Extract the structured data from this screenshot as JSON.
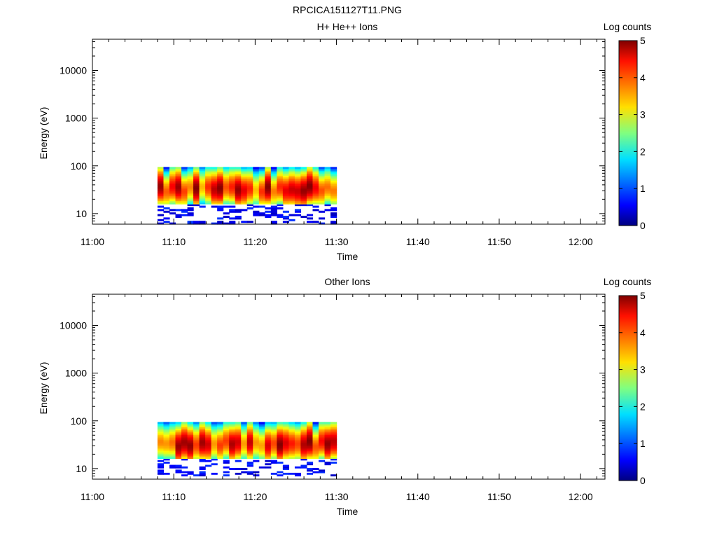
{
  "figure": {
    "title": "RPCICA151127T11.PNG"
  },
  "colorbar": {
    "label": "Log counts",
    "ticks": [
      "0",
      "1",
      "2",
      "3",
      "4",
      "5"
    ],
    "min": 0,
    "max": 5
  },
  "chart_data": [
    {
      "type": "heatmap",
      "title": "H+ He++ Ions",
      "xlabel": "Time",
      "ylabel": "Energy (eV)",
      "y_scale": "log",
      "x_ticks": [
        "11:00",
        "11:10",
        "11:20",
        "11:30",
        "11:40",
        "11:50",
        "12:00"
      ],
      "y_ticks": [
        "10",
        "100",
        "1000",
        "10000"
      ],
      "xlim": [
        "11:00",
        "12:03"
      ],
      "ylim": [
        6,
        45000
      ],
      "data_extent_time": [
        "11:08",
        "11:30"
      ],
      "data_extent_energy": [
        6,
        95
      ],
      "peak_energy_eV": 35,
      "peak_log_counts": 4.6
    },
    {
      "type": "heatmap",
      "title": "Other Ions",
      "xlabel": "Time",
      "ylabel": "Energy (eV)",
      "y_scale": "log",
      "x_ticks": [
        "11:00",
        "11:10",
        "11:20",
        "11:30",
        "11:40",
        "11:50",
        "12:00"
      ],
      "y_ticks": [
        "10",
        "100",
        "1000",
        "10000"
      ],
      "xlim": [
        "11:00",
        "12:03"
      ],
      "ylim": [
        6,
        45000
      ],
      "data_extent_time": [
        "11:08",
        "11:30"
      ],
      "data_extent_energy": [
        7,
        95
      ],
      "peak_energy_eV": 35,
      "peak_log_counts": 4.7
    }
  ]
}
